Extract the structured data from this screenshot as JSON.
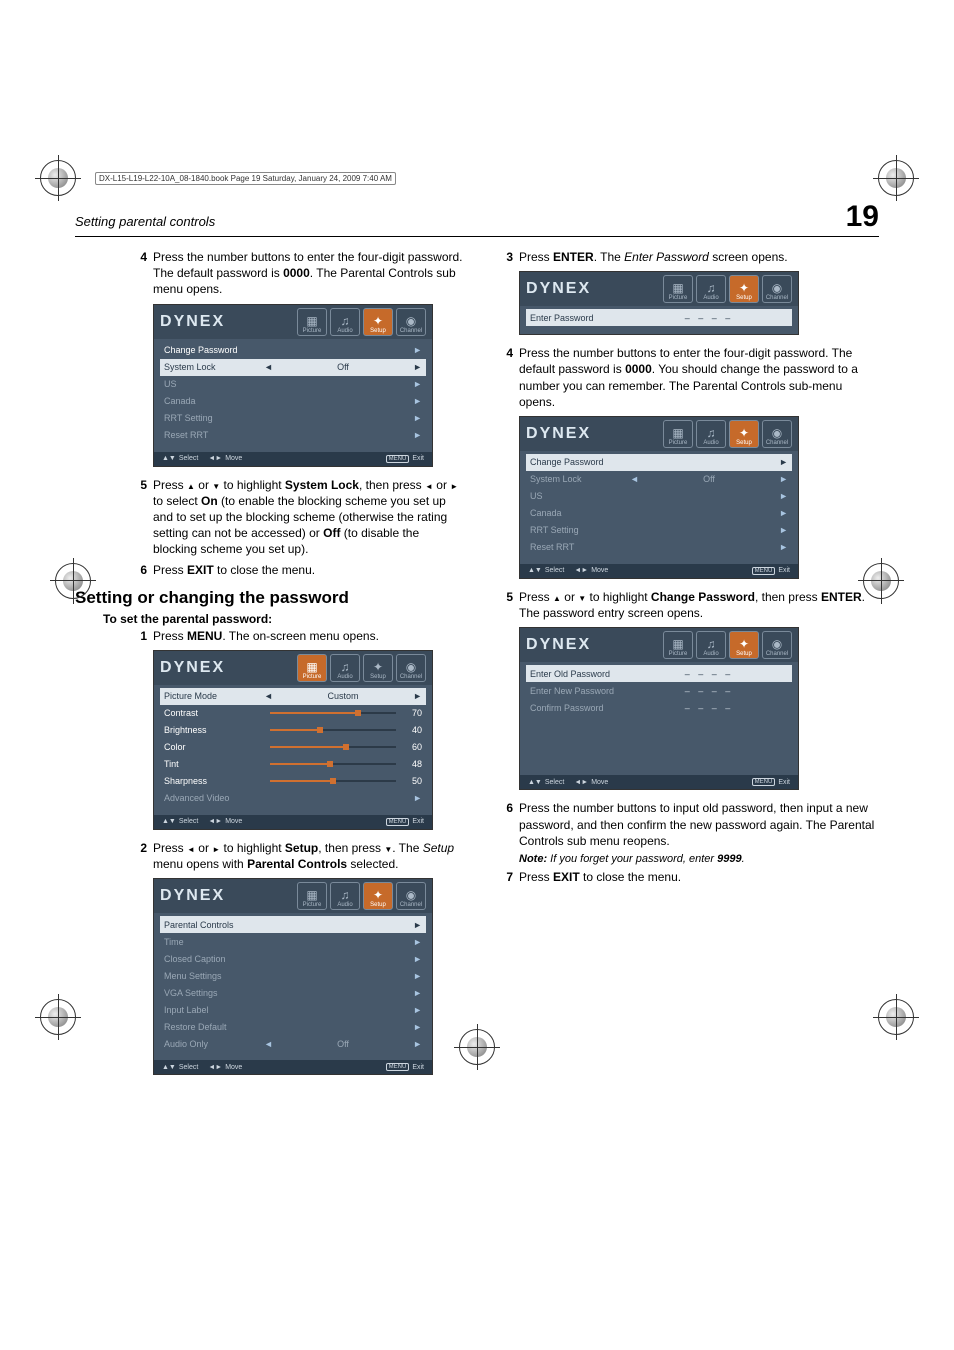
{
  "booktag": "DX-L15-L19-L22-10A_08-1840.book  Page 19  Saturday, January 24, 2009  7:40 AM",
  "runhead": {
    "title": "Setting parental controls",
    "pagenum": "19"
  },
  "left": {
    "step4": "Press the number buttons to enter the four-digit password. The default password is <b>0000</b>. The Parental Controls sub menu opens.",
    "step5": "Press <span class='tri'>▲</span> or <span class='tri'>▼</span> to highlight <b>System Lock</b>, then press <span class='tri'>◄</span> or <span class='tri'>►</span> to select <b>On</b> (to enable the blocking scheme you set up and to set up the blocking scheme (otherwise the rating setting can not be accessed) or <b>Off</b> (to disable the blocking scheme you set up).",
    "step6": "Press <b>EXIT</b> to close the menu.",
    "h2": "Setting or changing the password",
    "h3": "To set the parental password:",
    "s1": "Press <b>MENU</b>. The on-screen menu opens.",
    "s2": "Press <span class='tri'>◄</span> or <span class='tri'>►</span> to highlight <b>Setup</b>, then press <span class='tri'>▼</span>. The <i>Setup</i> menu opens with <b>Parental Controls</b> selected."
  },
  "right": {
    "s3": "Press <b>ENTER</b>. The <i>Enter Password</i> screen opens.",
    "s4": "Press the number buttons to enter the four-digit password. The default password is <b>0000</b>. You should change the password to a number you can remember. The Parental Controls sub-menu opens.",
    "s5": "Press <span class='tri'>▲</span> or <span class='tri'>▼</span> to highlight <b>Change Password</b>, then press <b>ENTER</b>. The password entry screen opens.",
    "s6": "Press the number buttons to input old password, then input a new password, and then confirm the new password again. The Parental Controls sub menu reopens.",
    "note": "<b>Note:</b> <i>If you forget your password, enter <b>9999</b>.</i>",
    "s7": "Press <b>EXIT</b> to close the menu."
  },
  "osd_common": {
    "logo": "DYNEX",
    "tabs": [
      "Picture",
      "Audio",
      "Setup",
      "Channel"
    ],
    "tabicons": [
      "▦",
      "♫",
      "✦",
      "◉"
    ],
    "footer": {
      "select": "Select",
      "move": "Move",
      "menu": "MENU",
      "exit": "Exit"
    }
  },
  "osd_parental": {
    "activeTab": 2,
    "rows": [
      {
        "label": "Change Password",
        "hi": false,
        "arrowR": true
      },
      {
        "label": "System Lock",
        "val": "Off",
        "hi": true,
        "arrowL": true,
        "arrowR": true
      },
      {
        "label": "US",
        "hi": false,
        "arrowR": true,
        "dim": true
      },
      {
        "label": "Canada",
        "hi": false,
        "arrowR": true,
        "dim": true
      },
      {
        "label": "RRT Setting",
        "hi": false,
        "arrowR": true,
        "dim": true
      },
      {
        "label": "Reset RRT",
        "hi": false,
        "arrowR": true,
        "dim": true
      }
    ]
  },
  "osd_parental2": {
    "activeTab": 2,
    "rows": [
      {
        "label": "Change Password",
        "hi": true,
        "arrowR": true
      },
      {
        "label": "System Lock",
        "val": "Off",
        "hi": false,
        "arrowL": true,
        "arrowR": true,
        "dim": true
      },
      {
        "label": "US",
        "hi": false,
        "arrowR": true,
        "dim": true
      },
      {
        "label": "Canada",
        "hi": false,
        "arrowR": true,
        "dim": true
      },
      {
        "label": "RRT Setting",
        "hi": false,
        "arrowR": true,
        "dim": true
      },
      {
        "label": "Reset RRT",
        "hi": false,
        "arrowR": true,
        "dim": true
      }
    ]
  },
  "osd_picture": {
    "activeTab": 0,
    "rows": [
      {
        "label": "Picture Mode",
        "val": "Custom",
        "hi": true,
        "arrowL": true,
        "arrowR": true,
        "slider": false
      },
      {
        "label": "Contrast",
        "num": "70",
        "slider": true,
        "pct": 70
      },
      {
        "label": "Brightness",
        "num": "40",
        "slider": true,
        "pct": 40
      },
      {
        "label": "Color",
        "num": "60",
        "slider": true,
        "pct": 60
      },
      {
        "label": "Tint",
        "num": "48",
        "slider": true,
        "pct": 48
      },
      {
        "label": "Sharpness",
        "num": "50",
        "slider": true,
        "pct": 50
      },
      {
        "label": "Advanced Video",
        "arrowR": true,
        "dim": true
      }
    ]
  },
  "osd_setup": {
    "activeTab": 2,
    "rows": [
      {
        "label": "Parental Controls",
        "hi": true,
        "arrowR": true
      },
      {
        "label": "Time",
        "arrowR": true,
        "dim": true
      },
      {
        "label": "Closed Caption",
        "arrowR": true,
        "dim": true
      },
      {
        "label": "Menu Settings",
        "arrowR": true,
        "dim": true
      },
      {
        "label": "VGA Settings",
        "arrowR": true,
        "dim": true
      },
      {
        "label": "Input Label",
        "arrowR": true,
        "dim": true
      },
      {
        "label": "Restore Default",
        "arrowR": true,
        "dim": true
      },
      {
        "label": "Audio Only",
        "val": "Off",
        "arrowL": true,
        "arrowR": true,
        "dim": true
      }
    ]
  },
  "osd_enterpw": {
    "activeTab": 2,
    "rows": [
      {
        "label": "Enter Password",
        "hi": true,
        "dashes": true
      }
    ]
  },
  "osd_changepw": {
    "activeTab": 2,
    "rows": [
      {
        "label": "Enter Old Password",
        "hi": true,
        "dashes": true
      },
      {
        "label": "Enter New Password",
        "dashes": true,
        "dim": true
      },
      {
        "label": "Confirm Password",
        "dashes": true,
        "dim": true
      }
    ],
    "pad": 3
  }
}
